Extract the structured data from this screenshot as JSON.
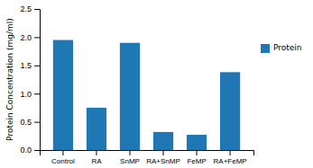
{
  "chart_data": {
    "type": "bar",
    "categories": [
      "Control",
      "RA",
      "SnMP",
      "RA+SnMP",
      "FeMP",
      "RA+FeMP"
    ],
    "series": [
      {
        "name": "Protein",
        "values": [
          1.95,
          0.75,
          1.9,
          0.32,
          0.27,
          1.38
        ]
      }
    ],
    "ylabel": "Protein Concentration (mg/ml)",
    "ylim": [
      0,
      2.5
    ],
    "yticks": [
      {
        "value": 0,
        "label": "0.0"
      },
      0.5,
      {
        "value": 1.0,
        "label": "1.0"
      },
      1.5,
      {
        "value": 2.0,
        "label": "2.0"
      },
      2.5
    ],
    "legend": "right"
  }
}
